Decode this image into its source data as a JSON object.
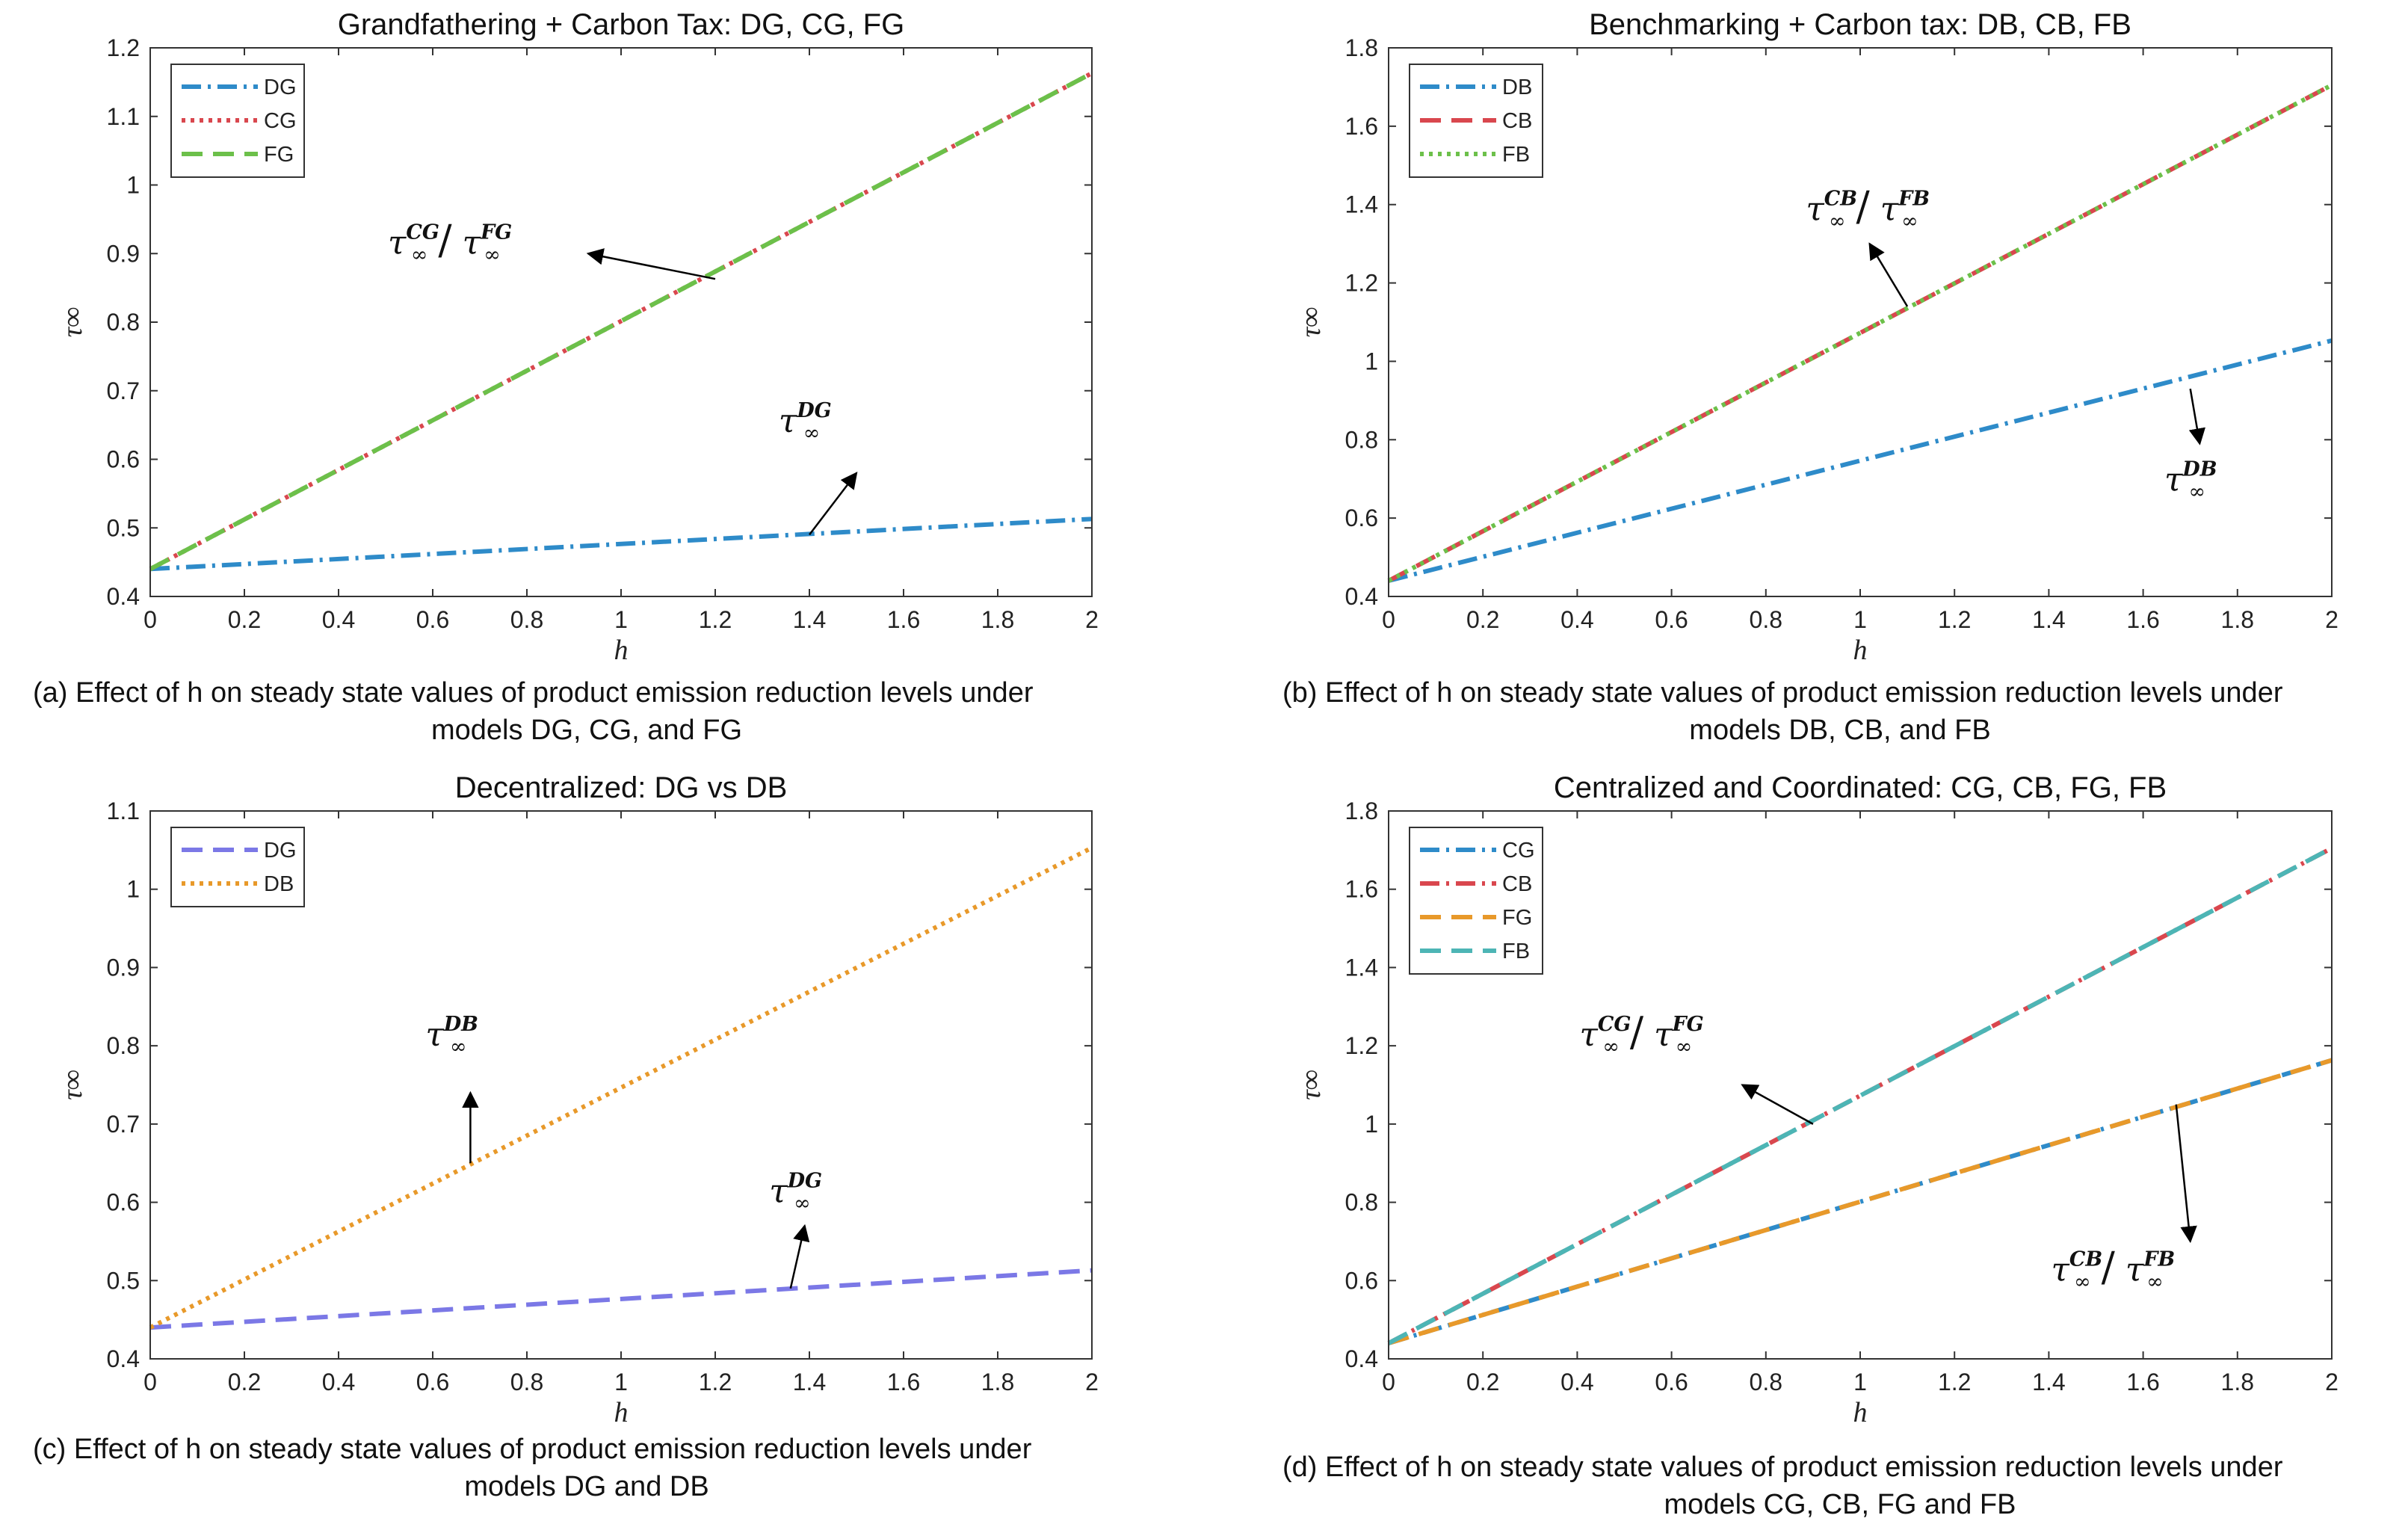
{
  "figure": {
    "panels": [
      {
        "key": "a",
        "caption": [
          "(a) Effect of h on steady state values of product emission reduction levels under",
          "models DG, CG, and FG"
        ]
      },
      {
        "key": "b",
        "caption": [
          "(b) Effect of h on steady state values of product emission reduction levels under",
          "models DB, CB, and FB"
        ]
      },
      {
        "key": "c",
        "caption": [
          "(c) Effect of h on steady state values of product emission reduction levels under",
          "models DG and DB"
        ]
      },
      {
        "key": "d",
        "caption": [
          "(d) Effect of h on steady state values of product emission reduction levels under",
          "models CG, CB, FG and FB"
        ]
      }
    ]
  },
  "chart_data": [
    {
      "type": "line",
      "title": "Grandfathering + Carbon Tax: DG, CG, FG",
      "xlabel": "h",
      "ylabel": "τ∞",
      "xlim": [
        0,
        2
      ],
      "ylim": [
        0.4,
        1.2
      ],
      "xticks": [
        0,
        0.2,
        0.4,
        0.6,
        0.8,
        1,
        1.2,
        1.4,
        1.6,
        1.8,
        2
      ],
      "xtick_labels": [
        "0",
        "0.2",
        "0.4",
        "0.6",
        "0.8",
        "1",
        "1.2",
        "1.4",
        "1.6",
        "1.8",
        "2"
      ],
      "yticks": [
        0.4,
        0.5,
        0.6,
        0.7,
        0.8,
        0.9,
        1,
        1.1,
        1.2
      ],
      "ytick_labels": [
        "0.4",
        "0.5",
        "0.6",
        "0.7",
        "0.8",
        "0.9",
        "1",
        "1.1",
        "1.2"
      ],
      "legend_position": "top-left",
      "series": [
        {
          "name": "DG",
          "x": [
            0,
            2
          ],
          "y": [
            0.44,
            0.513
          ],
          "color": "#2E8BC9",
          "style": "dashdot"
        },
        {
          "name": "CG",
          "x": [
            0,
            2
          ],
          "y": [
            0.44,
            1.163
          ],
          "color": "#D9474E",
          "style": "dotted"
        },
        {
          "name": "FG",
          "x": [
            0,
            2
          ],
          "y": [
            0.44,
            1.163
          ],
          "color": "#6CC04A",
          "style": "dashed"
        }
      ],
      "annotations": [
        {
          "base": "τ",
          "sup": "CG",
          "sub": "∞",
          "base2": "τ",
          "sup2": "FG",
          "sub2": "∞",
          "at": [
            0.6,
            0.9
          ],
          "arrow_from": [
            1.2,
            0.863
          ],
          "arrow_to": [
            0.93,
            0.9
          ]
        },
        {
          "base": "τ",
          "sup": "DG",
          "sub": "∞",
          "at": [
            1.43,
            0.64
          ],
          "arrow_from": [
            1.4,
            0.49
          ],
          "arrow_to": [
            1.5,
            0.58
          ]
        }
      ]
    },
    {
      "type": "line",
      "title": "Benchmarking + Carbon tax: DB, CB, FB",
      "xlabel": "h",
      "ylabel": "τ∞",
      "xlim": [
        0,
        2
      ],
      "ylim": [
        0.4,
        1.8
      ],
      "xticks": [
        0,
        0.2,
        0.4,
        0.6,
        0.8,
        1,
        1.2,
        1.4,
        1.6,
        1.8,
        2
      ],
      "xtick_labels": [
        "0",
        "0.2",
        "0.4",
        "0.6",
        "0.8",
        "1",
        "1.2",
        "1.4",
        "1.6",
        "1.8",
        "2"
      ],
      "yticks": [
        0.4,
        0.6,
        0.8,
        1,
        1.2,
        1.4,
        1.6,
        1.8
      ],
      "ytick_labels": [
        "0.4",
        "0.6",
        "0.8",
        "1",
        "1.2",
        "1.4",
        "1.6",
        "1.8"
      ],
      "legend_position": "top-left",
      "series": [
        {
          "name": "DB",
          "x": [
            0,
            2
          ],
          "y": [
            0.44,
            1.053
          ],
          "color": "#2E8BC9",
          "style": "dashdot"
        },
        {
          "name": "CB",
          "x": [
            0,
            2
          ],
          "y": [
            0.44,
            1.705
          ],
          "color": "#D9474E",
          "style": "dashed"
        },
        {
          "name": "FB",
          "x": [
            0,
            2
          ],
          "y": [
            0.44,
            1.705
          ],
          "color": "#6CC04A",
          "style": "dotted"
        }
      ],
      "annotations": [
        {
          "base": "τ",
          "sup": "CB",
          "sub": "∞",
          "base2": "τ",
          "sup2": "FB",
          "sub2": "∞",
          "at": [
            0.98,
            1.36
          ],
          "arrow_from": [
            1.1,
            1.14
          ],
          "arrow_to": [
            1.02,
            1.3
          ]
        },
        {
          "base": "τ",
          "sup": "DB",
          "sub": "∞",
          "at": [
            1.74,
            0.67
          ],
          "arrow_from": [
            1.7,
            0.93
          ],
          "arrow_to": [
            1.72,
            0.79
          ]
        }
      ]
    },
    {
      "type": "line",
      "title": "Decentralized: DG vs DB",
      "xlabel": "h",
      "ylabel": "τ∞",
      "xlim": [
        0,
        2
      ],
      "ylim": [
        0.4,
        1.1
      ],
      "xticks": [
        0,
        0.2,
        0.4,
        0.6,
        0.8,
        1,
        1.2,
        1.4,
        1.6,
        1.8,
        2
      ],
      "xtick_labels": [
        "0",
        "0.2",
        "0.4",
        "0.6",
        "0.8",
        "1",
        "1.2",
        "1.4",
        "1.6",
        "1.8",
        "2"
      ],
      "yticks": [
        0.4,
        0.5,
        0.6,
        0.7,
        0.8,
        0.9,
        1,
        1.1
      ],
      "ytick_labels": [
        "0.4",
        "0.5",
        "0.6",
        "0.7",
        "0.8",
        "0.9",
        "1",
        "1.1"
      ],
      "legend_position": "top-left",
      "series": [
        {
          "name": "DG",
          "x": [
            0,
            2
          ],
          "y": [
            0.44,
            0.513
          ],
          "color": "#7B78E6",
          "style": "dashed"
        },
        {
          "name": "DB",
          "x": [
            0,
            2
          ],
          "y": [
            0.44,
            1.053
          ],
          "color": "#E8992A",
          "style": "dotted"
        }
      ],
      "annotations": [
        {
          "base": "τ",
          "sup": "DB",
          "sub": "∞",
          "at": [
            0.68,
            0.8
          ],
          "arrow_from": [
            0.68,
            0.65
          ],
          "arrow_to": [
            0.68,
            0.74
          ]
        },
        {
          "base": "τ",
          "sup": "DG",
          "sub": "∞",
          "at": [
            1.41,
            0.6
          ],
          "arrow_from": [
            1.36,
            0.49
          ],
          "arrow_to": [
            1.39,
            0.57
          ]
        }
      ]
    },
    {
      "type": "line",
      "title": "Centralized  and Coordinated: CG, CB, FG, FB",
      "xlabel": "h",
      "ylabel": "τ∞",
      "xlim": [
        0,
        2
      ],
      "ylim": [
        0.4,
        1.8
      ],
      "xticks": [
        0,
        0.2,
        0.4,
        0.6,
        0.8,
        1,
        1.2,
        1.4,
        1.6,
        1.8,
        2
      ],
      "xtick_labels": [
        "0",
        "0.2",
        "0.4",
        "0.6",
        "0.8",
        "1",
        "1.2",
        "1.4",
        "1.6",
        "1.8",
        "2"
      ],
      "yticks": [
        0.4,
        0.6,
        0.8,
        1,
        1.2,
        1.4,
        1.6,
        1.8
      ],
      "ytick_labels": [
        "0.4",
        "0.6",
        "0.8",
        "1",
        "1.2",
        "1.4",
        "1.6",
        "1.8"
      ],
      "legend_position": "top-left",
      "series": [
        {
          "name": "CG",
          "x": [
            0,
            2
          ],
          "y": [
            0.44,
            1.163
          ],
          "color": "#2E8BC9",
          "style": "dashdot"
        },
        {
          "name": "CB",
          "x": [
            0,
            2
          ],
          "y": [
            0.44,
            1.705
          ],
          "color": "#D9474E",
          "style": "dashdot"
        },
        {
          "name": "FG",
          "x": [
            0,
            2
          ],
          "y": [
            0.44,
            1.163
          ],
          "color": "#E8992A",
          "style": "dashed"
        },
        {
          "name": "FB",
          "x": [
            0,
            2
          ],
          "y": [
            0.44,
            1.705
          ],
          "color": "#4DB5B5",
          "style": "dashed"
        }
      ],
      "annotations": [
        {
          "base": "τ",
          "sup": "CG",
          "sub": "∞",
          "base2": "τ",
          "sup2": "FG",
          "sub2": "∞",
          "at": [
            0.5,
            1.2
          ],
          "arrow_from": [
            0.9,
            1.0
          ],
          "arrow_to": [
            0.75,
            1.1
          ]
        },
        {
          "base": "τ",
          "sup": "CB",
          "sub": "∞",
          "base2": "τ",
          "sup2": "FB",
          "sub2": "∞",
          "at": [
            1.5,
            0.6
          ],
          "arrow_from": [
            1.67,
            1.05
          ],
          "arrow_to": [
            1.7,
            0.7
          ]
        }
      ]
    }
  ]
}
